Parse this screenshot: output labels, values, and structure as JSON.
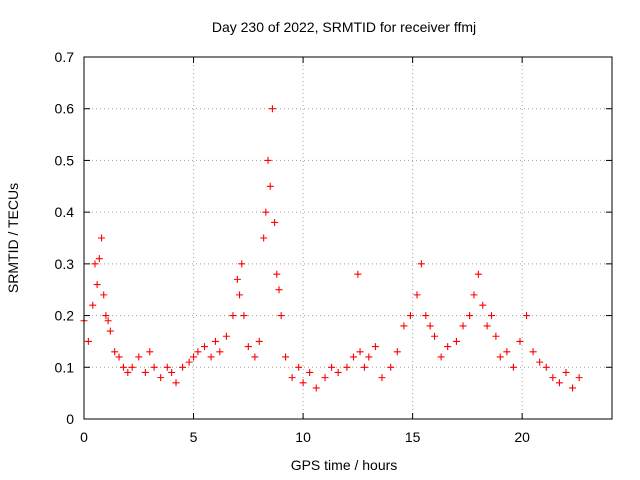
{
  "chart_data": {
    "type": "scatter",
    "title": "Day 230 of 2022, SRMTID for receiver ffmj",
    "xlabel": "GPS time / hours",
    "ylabel": "SRMTID / TECUs",
    "xlim": [
      0,
      24.1
    ],
    "ylim": [
      0,
      0.7
    ],
    "xticks": [
      0,
      5,
      10,
      15,
      20
    ],
    "xtick_labels": [
      "0",
      "5",
      "10",
      "15",
      "20"
    ],
    "yticks": [
      0,
      0.1,
      0.2,
      0.3,
      0.4,
      0.5,
      0.6,
      0.7
    ],
    "ytick_labels": [
      "0",
      "0.1",
      "0.2",
      "0.3",
      "0.4",
      "0.5",
      "0.6",
      "0.7"
    ],
    "grid": true,
    "marker": "+",
    "marker_color": "#ff0000",
    "series": [
      {
        "name": "SRMTID",
        "x": [
          0.0,
          0.2,
          0.4,
          0.5,
          0.6,
          0.7,
          0.8,
          0.9,
          1.0,
          1.1,
          1.2,
          1.4,
          1.6,
          1.8,
          2.0,
          2.2,
          2.5,
          2.8,
          3.0,
          3.2,
          3.5,
          3.8,
          4.0,
          4.2,
          4.5,
          4.8,
          5.0,
          5.2,
          5.5,
          5.8,
          6.0,
          6.2,
          6.5,
          6.8,
          7.0,
          7.1,
          7.2,
          7.3,
          7.5,
          7.8,
          8.0,
          8.2,
          8.3,
          8.4,
          8.5,
          8.6,
          8.7,
          8.8,
          8.9,
          9.0,
          9.2,
          9.5,
          9.8,
          10.0,
          10.3,
          10.6,
          11.0,
          11.3,
          11.6,
          12.0,
          12.3,
          12.5,
          12.6,
          12.8,
          13.0,
          13.3,
          13.6,
          14.0,
          14.3,
          14.6,
          14.9,
          15.2,
          15.4,
          15.6,
          15.8,
          16.0,
          16.3,
          16.6,
          17.0,
          17.3,
          17.6,
          17.8,
          18.0,
          18.2,
          18.4,
          18.6,
          18.8,
          19.0,
          19.3,
          19.6,
          19.9,
          20.2,
          20.5,
          20.8,
          21.1,
          21.4,
          21.7,
          22.0,
          22.3,
          22.6
        ],
        "y": [
          0.19,
          0.15,
          0.22,
          0.3,
          0.26,
          0.31,
          0.35,
          0.24,
          0.2,
          0.19,
          0.17,
          0.13,
          0.12,
          0.1,
          0.09,
          0.1,
          0.12,
          0.09,
          0.13,
          0.1,
          0.08,
          0.1,
          0.09,
          0.07,
          0.1,
          0.11,
          0.12,
          0.13,
          0.14,
          0.12,
          0.15,
          0.13,
          0.16,
          0.2,
          0.27,
          0.24,
          0.3,
          0.2,
          0.14,
          0.12,
          0.15,
          0.35,
          0.4,
          0.5,
          0.45,
          0.6,
          0.38,
          0.28,
          0.25,
          0.2,
          0.12,
          0.08,
          0.1,
          0.07,
          0.09,
          0.06,
          0.08,
          0.1,
          0.09,
          0.1,
          0.12,
          0.28,
          0.13,
          0.1,
          0.12,
          0.14,
          0.08,
          0.1,
          0.13,
          0.18,
          0.2,
          0.24,
          0.3,
          0.2,
          0.18,
          0.16,
          0.12,
          0.14,
          0.15,
          0.18,
          0.2,
          0.24,
          0.28,
          0.22,
          0.18,
          0.2,
          0.16,
          0.12,
          0.13,
          0.1,
          0.15,
          0.2,
          0.13,
          0.11,
          0.1,
          0.08,
          0.07,
          0.09,
          0.06,
          0.08
        ]
      }
    ]
  }
}
